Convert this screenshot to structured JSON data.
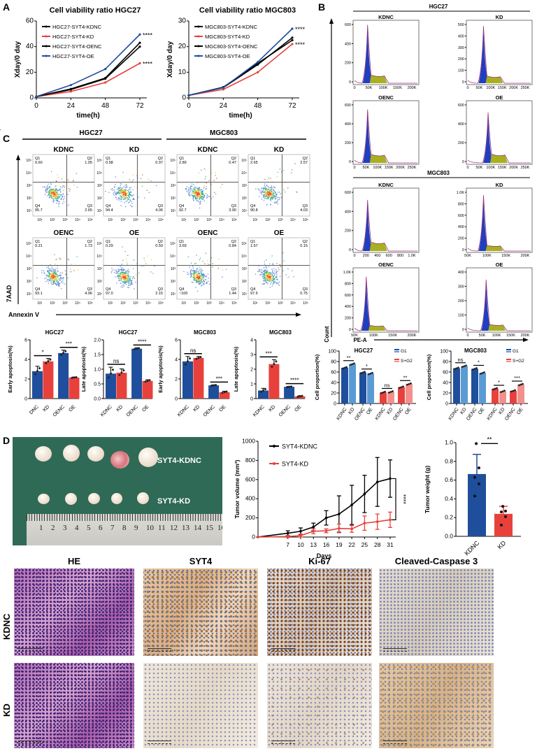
{
  "panels": {
    "a": "A",
    "b": "B",
    "c": "C",
    "d": "D"
  },
  "colors": {
    "blue": "#1f4e9c",
    "light_blue": "#5b9bd5",
    "red": "#e8413c",
    "light_red": "#f3908c",
    "black": "#000000"
  },
  "chart_data": [
    {
      "id": "viability-hgc27",
      "type": "line",
      "title": "Cell viability ratio HGC27",
      "xlabel": "time(h)",
      "ylabel": "Xday/0 day",
      "x": [
        0,
        24,
        48,
        72
      ],
      "xticks": [
        "0",
        "24",
        "48",
        "72"
      ],
      "ylim": [
        0,
        60
      ],
      "yticks": [
        "0",
        "20",
        "40",
        "60"
      ],
      "series": [
        {
          "name": "HGC27-SYT4-KDNC",
          "values": [
            1,
            6.5,
            15,
            40
          ],
          "color": "#000000"
        },
        {
          "name": "HGC27-SYT4-KD",
          "values": [
            1,
            5,
            12,
            27
          ],
          "color": "#e8413c"
        },
        {
          "name": "HGC27-SYT4-OENC",
          "values": [
            1,
            7,
            15.5,
            43
          ],
          "color": "#000000"
        },
        {
          "name": "HGC27-SYT4-OE",
          "values": [
            1,
            10,
            22.5,
            49.5
          ],
          "color": "#1f4e9c"
        }
      ],
      "annotations": [
        {
          "series": 3,
          "label": "****"
        },
        {
          "series": 1,
          "label": "****"
        }
      ]
    },
    {
      "id": "viability-mgc803",
      "type": "line",
      "title": "Cell viability ratio MGC803",
      "xlabel": "time(h)",
      "ylabel": "Xday/0 day",
      "x": [
        0,
        24,
        48,
        72
      ],
      "xticks": [
        "0",
        "24",
        "48",
        "72"
      ],
      "ylim": [
        0,
        30
      ],
      "yticks": [
        "0",
        "10",
        "20",
        "30"
      ],
      "series": [
        {
          "name": "MGC803-SYT4-KDNC",
          "values": [
            1,
            4,
            13,
            23.5
          ],
          "color": "#000000"
        },
        {
          "name": "MGC803-SYT4-KD",
          "values": [
            1,
            3.3,
            10,
            21
          ],
          "color": "#e8413c"
        },
        {
          "name": "MGC803-SYT4-OENC",
          "values": [
            1,
            4.2,
            13.5,
            22.5
          ],
          "color": "#000000"
        },
        {
          "name": "MGC803-SYT4-OE",
          "values": [
            1,
            4,
            14,
            27
          ],
          "color": "#1f4e9c"
        }
      ],
      "annotations": [
        {
          "series": 3,
          "label": "****"
        },
        {
          "series": 1,
          "label": "****"
        }
      ]
    },
    {
      "id": "early-apoptosis-hgc27",
      "type": "bar",
      "title": "HGC27",
      "ylabel": "Early apoptosis(%)",
      "categories": [
        "DNC",
        "KD",
        "OENC",
        "OE"
      ],
      "values": [
        2.8,
        3.8,
        4.65,
        2.15
      ],
      "errors": [
        0.5,
        0.3,
        0.3,
        0.05
      ],
      "ylim": [
        0,
        6
      ],
      "yticks": [
        "0",
        "2",
        "4",
        "6"
      ],
      "significance": [
        {
          "pair": [
            0,
            1
          ],
          "label": "*"
        },
        {
          "pair": [
            2,
            3
          ],
          "label": "***"
        }
      ]
    },
    {
      "id": "late-apoptosis-hgc27",
      "type": "bar",
      "title": "HGC27",
      "ylabel": "Late apoptosis(%)",
      "categories": [
        "KDNC",
        "KD",
        "OENC",
        "OE"
      ],
      "values": [
        0.85,
        0.88,
        1.7,
        0.6
      ],
      "errors": [
        0.22,
        0.13,
        0.03,
        0.04
      ],
      "ylim": [
        0,
        2
      ],
      "yticks": [
        "0.0",
        "0.5",
        "1.0",
        "1.5",
        "2.0"
      ],
      "significance": [
        {
          "pair": [
            0,
            1
          ],
          "label": "ns"
        },
        {
          "pair": [
            2,
            3
          ],
          "label": "****"
        }
      ]
    },
    {
      "id": "early-apoptosis-mgc803",
      "type": "bar",
      "title": "MGC803",
      "ylabel": "Early apoptosis(%)",
      "categories": [
        "KDNC",
        "KD",
        "OENC",
        "OE"
      ],
      "values": [
        3.8,
        4.15,
        1.35,
        0.65
      ],
      "errors": [
        0.5,
        0.15,
        0.05,
        0.1
      ],
      "ylim": [
        0,
        6
      ],
      "yticks": [
        "0",
        "2",
        "4",
        "6"
      ],
      "significance": [
        {
          "pair": [
            0,
            1
          ],
          "label": "ns"
        },
        {
          "pair": [
            2,
            3
          ],
          "label": "***"
        }
      ]
    },
    {
      "id": "late-apoptosis-mgc803",
      "type": "bar",
      "title": "MGC803",
      "ylabel": "Late apoptosis(%)",
      "categories": [
        "KDNC",
        "KD",
        "OENC",
        "OE"
      ],
      "values": [
        0.55,
        2.35,
        0.8,
        0.15
      ],
      "errors": [
        0.15,
        0.3,
        0.03,
        0.05
      ],
      "ylim": [
        0,
        4
      ],
      "yticks": [
        "0",
        "1",
        "2",
        "3",
        "4"
      ],
      "significance": [
        {
          "pair": [
            0,
            1
          ],
          "label": "***"
        },
        {
          "pair": [
            2,
            3
          ],
          "label": "****"
        }
      ]
    },
    {
      "id": "cell-cycle-hgc27",
      "type": "bar",
      "title": "HGC27",
      "ylabel": "Cell proportion(%)",
      "categories": [
        "KDNC",
        "KD",
        "OENC",
        "OE"
      ],
      "ylim": [
        0,
        100
      ],
      "yticks": [
        "0",
        "20",
        "40",
        "60",
        "80",
        "100"
      ],
      "series": [
        {
          "name": "G1",
          "values": [
            68,
            75,
            59,
            57
          ],
          "colors": [
            "#1f4e9c",
            "#5b9bd5"
          ]
        },
        {
          "name": "S+G2",
          "values": [
            21,
            22,
            31,
            37
          ],
          "colors": [
            "#e8413c",
            "#f3908c"
          ]
        }
      ],
      "significance": [
        "**",
        "*",
        "ns",
        "**"
      ]
    },
    {
      "id": "cell-cycle-mgc803",
      "type": "bar",
      "title": "MGC803",
      "ylabel": "Cell proportion(%)",
      "categories": [
        "KDNC",
        "KD",
        "OENC",
        "OE"
      ],
      "ylim": [
        0,
        100
      ],
      "yticks": [
        "0",
        "20",
        "40",
        "60",
        "80",
        "100"
      ],
      "series": [
        {
          "name": "G1",
          "values": [
            67,
            71,
            66,
            58
          ],
          "colors": [
            "#1f4e9c",
            "#5b9bd5"
          ]
        },
        {
          "name": "S+G2",
          "values": [
            28,
            23,
            24,
            36
          ],
          "colors": [
            "#e8413c",
            "#f3908c"
          ]
        }
      ],
      "significance": [
        "ns",
        "*",
        "*",
        "***"
      ]
    },
    {
      "id": "tumor-volume",
      "type": "line",
      "xlabel": "Days",
      "ylabel": "Tumor volume (mm³)",
      "x": [
        0,
        7,
        10,
        13,
        16,
        19,
        22,
        25,
        28,
        31
      ],
      "xticks": [
        "7",
        "10",
        "13",
        "16",
        "19",
        "22",
        "25",
        "28",
        "31"
      ],
      "xlim": [
        0,
        31
      ],
      "ylim": [
        0,
        1000
      ],
      "yticks": [
        "0",
        "200",
        "400",
        "600",
        "800",
        "1000"
      ],
      "series": [
        {
          "name": "SYT4-KDNC",
          "values": [
            0,
            40,
            60,
            105,
            200,
            240,
            335,
            450,
            575,
            610
          ],
          "errors": [
            0,
            25,
            35,
            40,
            75,
            190,
            205,
            195,
            255,
            195
          ],
          "color": "#000000"
        },
        {
          "name": "SYT4-KD",
          "values": [
            0,
            5,
            15,
            60,
            65,
            90,
            85,
            145,
            160,
            180
          ],
          "errors": [
            0,
            10,
            15,
            25,
            20,
            45,
            35,
            75,
            80,
            80
          ],
          "color": "#e8413c"
        }
      ],
      "significance": "****"
    },
    {
      "id": "tumor-weight",
      "type": "bar",
      "ylabel": "Tumor weight (g)",
      "categories": [
        "KDNC",
        "KD"
      ],
      "values": [
        0.665,
        0.24
      ],
      "errors": [
        0.21,
        0.08
      ],
      "points": [
        [
          0.99,
          0.73,
          0.63,
          0.56,
          0.43
        ],
        [
          0.32,
          0.27,
          0.26,
          0.21,
          0.12
        ]
      ],
      "ylim": [
        0,
        1.0
      ],
      "yticks": [
        "0.0",
        "0.2",
        "0.4",
        "0.6",
        "0.8",
        "1.0"
      ],
      "significance": "**"
    }
  ],
  "cell_cycle_histograms": {
    "axis_y": "Count",
    "axis_x": "PE-A",
    "groups": [
      {
        "title": "HGC27",
        "panels": [
          {
            "label": "KDNC",
            "yticks": [
              "0",
              "200",
              "400",
              "600"
            ],
            "xticks": [
              "0",
              "50K",
              "100K",
              "150K",
              "200K"
            ]
          },
          {
            "label": "KD",
            "yticks": [
              "0",
              "100",
              "200",
              "300",
              "400",
              "500"
            ],
            "xticks": [
              "0",
              "50K",
              "100K",
              "150K",
              "200K",
              "250K"
            ]
          },
          {
            "label": "OENC",
            "yticks": [
              "0",
              "200",
              "400",
              "600"
            ],
            "xticks": [
              "0",
              "50K",
              "100K",
              "150K",
              "200K",
              "250K"
            ]
          },
          {
            "label": "OE",
            "yticks": [
              "0",
              "200",
              "400",
              "600"
            ],
            "xticks": [
              "0",
              "50K",
              "100K",
              "150K",
              "200K",
              "250K"
            ]
          }
        ]
      },
      {
        "title": "MGC803",
        "panels": [
          {
            "label": "KDNC",
            "yticks": [
              "0",
              "200",
              "400",
              "600"
            ],
            "xticks": [
              "0",
              "200",
              "400",
              "600",
              "800",
              "1.0K"
            ]
          },
          {
            "label": "KD",
            "yticks": [
              "0",
              "200",
              "400",
              "600",
              "800",
              "1.0K"
            ],
            "xticks": [
              "50K",
              "100K",
              "150K",
              "200K"
            ]
          },
          {
            "label": "OENC",
            "yticks": [
              "0",
              "200",
              "400",
              "600",
              "800",
              "1.0K"
            ],
            "xticks": [
              "50K",
              "100K",
              "150K",
              "200K"
            ]
          },
          {
            "label": "OE",
            "yticks": [
              "0",
              "100",
              "200",
              "300",
              "400"
            ],
            "xticks": [
              "0",
              "50K",
              "100K",
              "150K",
              "200K"
            ]
          }
        ]
      }
    ]
  },
  "apoptosis_flow": {
    "axis_y": "7AAD",
    "axis_x": "Annexin V",
    "ticks": [
      "10¹",
      "10²",
      "10³",
      "10⁴",
      "10⁵"
    ],
    "groups": [
      {
        "title": "HGC27",
        "panels": [
          {
            "label": "KDNC",
            "q1": "0.60",
            "q2": "1.05",
            "q3": "2.65",
            "q4": "95.7"
          },
          {
            "label": "KD",
            "q1": "0.58",
            "q2": "0.97",
            "q3": "4.06",
            "q4": "94.4"
          },
          {
            "label": "OENC",
            "q1": "0.21",
            "q2": "1.73",
            "q3": "4.96",
            "q4": "93.1"
          },
          {
            "label": "OE",
            "q1": "0.29",
            "q2": "0.59",
            "q3": "2.15",
            "q4": "97.0"
          }
        ]
      },
      {
        "title": "MGC803",
        "panels": [
          {
            "label": "KDNC",
            "q1": "2.89",
            "q2": "0.47",
            "q3": "3.90",
            "q4": "92.7"
          },
          {
            "label": "KD",
            "q1": "2.65",
            "q2": "2.57",
            "q3": "4.03",
            "q4": "90.8"
          },
          {
            "label": "OENC",
            "q1": "3.69",
            "q2": "0.84",
            "q3": "1.44",
            "q4": "~100"
          },
          {
            "label": "OE",
            "q1": "1.57",
            "q2": "0.15",
            "q3": "0.75",
            "q4": "97.5"
          }
        ]
      }
    ]
  },
  "tumor_photo": {
    "label_top": "SYT4-KDNC",
    "label_bottom": "SYT4-KD",
    "ruler_numbers": [
      "1",
      "2",
      "3",
      "4",
      "5",
      "6",
      "7",
      "8",
      "9",
      "10",
      "11",
      "12",
      "13",
      "14",
      "15",
      "16"
    ]
  },
  "ihc": {
    "columns": [
      "HE",
      "SYT4",
      "Ki-67",
      "Cleaved-Caspase 3"
    ],
    "rows": [
      "KDNC",
      "KD"
    ]
  }
}
